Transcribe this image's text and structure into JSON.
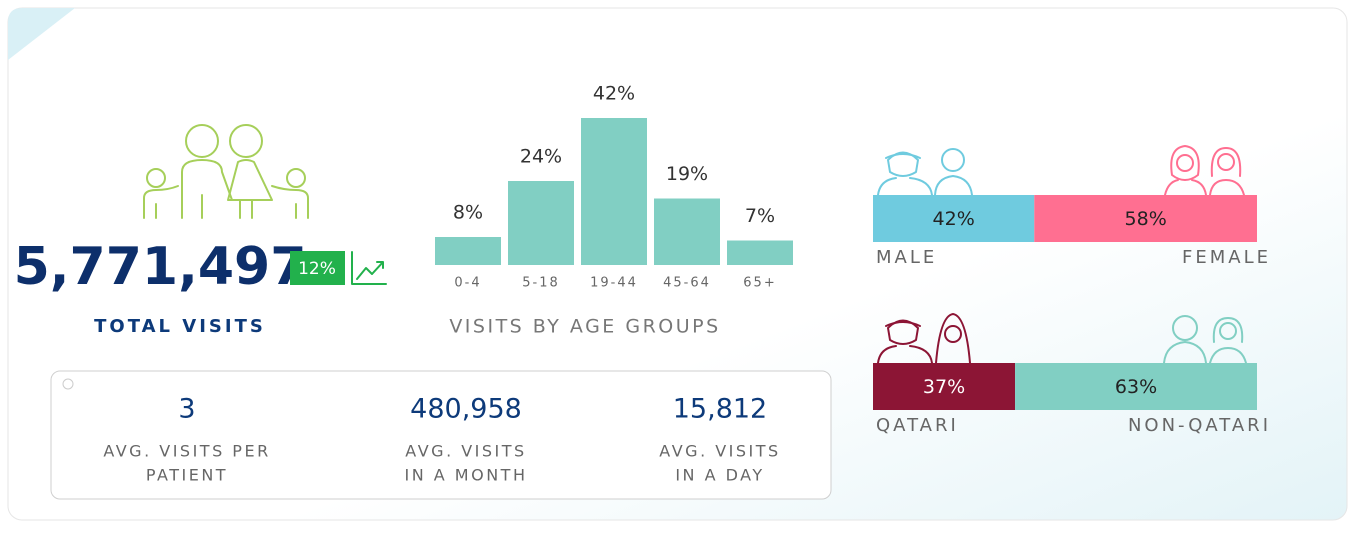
{
  "total_visits": {
    "value": "5,771,497",
    "label": "TOTAL VISITS",
    "change": "12%"
  },
  "chart_data": {
    "type": "bar",
    "title": "VISITS BY AGE GROUPS",
    "categories": [
      "0-4",
      "5-18",
      "19-44",
      "45-64",
      "65+"
    ],
    "values": [
      8,
      24,
      42,
      19,
      7
    ],
    "value_labels": [
      "8%",
      "24%",
      "42%",
      "19%",
      "7%"
    ],
    "color": "#81cfc3",
    "ylim": [
      0,
      42
    ]
  },
  "gender": {
    "segments": [
      {
        "name": "MALE",
        "value": 42,
        "label": "42%",
        "color": "#6fcbdf"
      },
      {
        "name": "FEMALE",
        "value": 58,
        "label": "58%",
        "color": "#ff6f91"
      }
    ]
  },
  "nationality": {
    "segments": [
      {
        "name": "QATARI",
        "value": 37,
        "label": "37%",
        "color": "#8c1535"
      },
      {
        "name": "NON-QATARI",
        "value": 63,
        "label": "63%",
        "color": "#81cfc3"
      }
    ]
  },
  "stats": [
    {
      "value": "3",
      "label": [
        "AVG. VISITS PER",
        "PATIENT"
      ]
    },
    {
      "value": "480,958",
      "label": [
        "AVG. VISITS",
        "IN A MONTH"
      ]
    },
    {
      "value": "15,812",
      "label": [
        "AVG. VISITS",
        "IN A DAY"
      ]
    }
  ]
}
